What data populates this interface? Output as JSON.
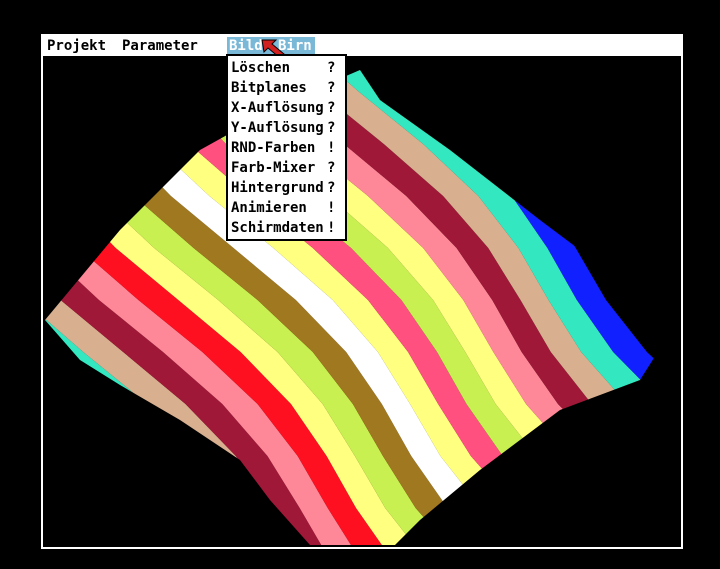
{
  "menubar": {
    "items": [
      "Projekt",
      "Parameter",
      "Bild",
      "Birn"
    ]
  },
  "menu": {
    "items": [
      {
        "label": "Löschen",
        "marker": "?"
      },
      {
        "label": "Bitplanes",
        "marker": "?"
      },
      {
        "label": "X-Auflösung",
        "marker": "?"
      },
      {
        "label": "Y-Auflösung",
        "marker": "?"
      },
      {
        "label": "RND-Farben",
        "marker": "!"
      },
      {
        "label": "Farb-Mixer",
        "marker": "?"
      },
      {
        "label": "Hintergrund",
        "marker": "?"
      },
      {
        "label": "Animieren",
        "marker": "!"
      },
      {
        "label": "Schirmdaten",
        "marker": "!"
      }
    ]
  }
}
